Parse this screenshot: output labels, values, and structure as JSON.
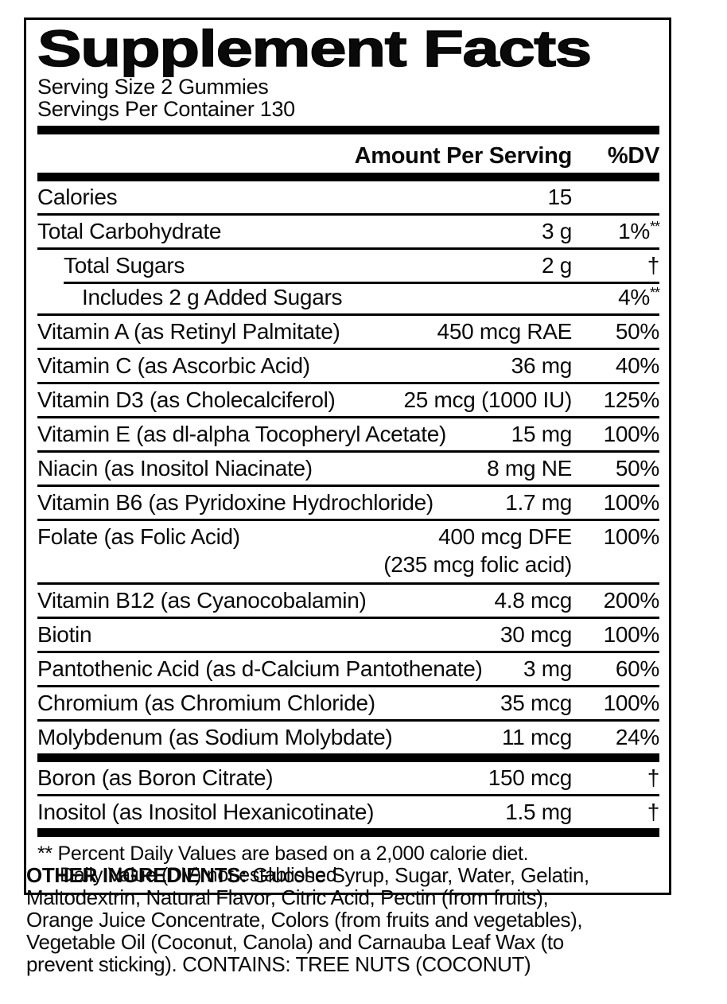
{
  "panel": {
    "title": "Supplement Facts",
    "serving_size": "Serving Size 2 Gummies",
    "servings_per_container": "Servings Per Container 130",
    "header": {
      "amount": "Amount Per Serving",
      "dv": "%DV"
    },
    "rows": [
      {
        "name": "Calories",
        "amount": "15",
        "dv": ""
      },
      {
        "name": "Total Carbohydrate",
        "amount": "3 g",
        "dv": "1%",
        "dv_sup": "**"
      },
      {
        "name": "Total Sugars",
        "amount": "2 g",
        "dv": "†"
      },
      {
        "name": "Includes 2 g Added Sugars",
        "amount": "",
        "dv": "4%",
        "dv_sup": "**"
      },
      {
        "name": "Vitamin A (as Retinyl Palmitate)",
        "amount": "450 mcg RAE",
        "dv": "50%"
      },
      {
        "name": "Vitamin C (as Ascorbic Acid)",
        "amount": "36 mg",
        "dv": "40%"
      },
      {
        "name": "Vitamin D3 (as Cholecalciferol)",
        "amount": "25 mcg (1000 IU)",
        "dv": "125%"
      },
      {
        "name": "Vitamin E (as dl-alpha Tocopheryl Acetate)",
        "amount": "15 mg",
        "dv": "100%"
      },
      {
        "name": "Niacin (as Inositol Niacinate)",
        "amount": "8 mg NE",
        "dv": "50%"
      },
      {
        "name": "Vitamin B6 (as Pyridoxine Hydrochloride)",
        "amount": "1.7 mg",
        "dv": "100%"
      },
      {
        "name": "Folate (as Folic Acid)",
        "amount": "400 mcg DFE",
        "dv": "100%"
      },
      {
        "name": "",
        "amount": "(235 mcg folic acid)",
        "dv": ""
      },
      {
        "name": "Vitamin B12 (as Cyanocobalamin)",
        "amount": "4.8 mcg",
        "dv": "200%"
      },
      {
        "name": "Biotin",
        "amount": "30 mcg",
        "dv": "100%"
      },
      {
        "name": "Pantothenic Acid (as d-Calcium Pantothenate)",
        "amount": "3 mg",
        "dv": "60%"
      },
      {
        "name": "Chromium (as Chromium Chloride)",
        "amount": "35 mcg",
        "dv": "100%"
      },
      {
        "name": "Molybdenum (as Sodium Molybdate)",
        "amount": "11 mcg",
        "dv": "24%"
      },
      {
        "name": "Boron (as Boron Citrate)",
        "amount": "150 mcg",
        "dv": "†"
      },
      {
        "name": "Inositol (as Inositol Hexanicotinate)",
        "amount": "1.5 mg",
        "dv": "†"
      }
    ],
    "footnote_line1": "** Percent Daily Values are based on a 2,000 calorie diet.",
    "footnote_line2": "Daily Value (DV) not established"
  },
  "other_ingredients": {
    "label": "OTHER INGREDIENTS:",
    "lines": [
      "Glucose Syrup, Sugar, Water, Gelatin,",
      "Maltodextrin, Natural Flavor, Citric Acid, Pectin (from fruits),",
      "Orange Juice Concentrate, Colors (from fruits and vegetables),",
      "Vegetable Oil (Coconut, Canola) and Carnauba Leaf Wax (to",
      "prevent sticking). CONTAINS: TREE NUTS (COCONUT)"
    ]
  }
}
